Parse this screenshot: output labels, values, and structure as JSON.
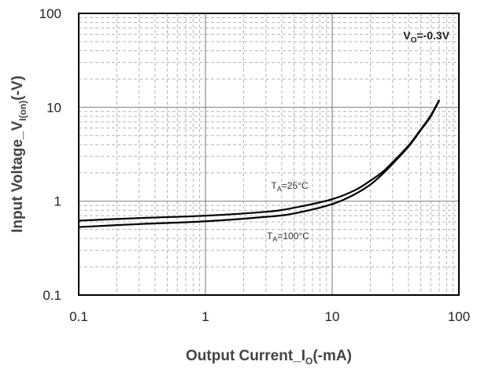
{
  "chart_data": {
    "type": "line",
    "x_scale": "log",
    "y_scale": "log",
    "xlim": [
      0.1,
      100
    ],
    "ylim": [
      0.1,
      100
    ],
    "grid": true,
    "x_ticks": [
      "0.1",
      "1",
      "10",
      "100"
    ],
    "y_ticks": [
      "0.1",
      "1",
      "10",
      "100"
    ],
    "xlabel": {
      "main": "Output Current_I",
      "sub": "O",
      "tail": "(-mA)"
    },
    "ylabel": {
      "main": "Input Voltage_V",
      "sub": "I(on)",
      "tail": "(-V)"
    },
    "condition": {
      "main": "V",
      "sub": "O",
      "tail": "=-0.3V"
    },
    "series": [
      {
        "label": {
          "main": "T",
          "sub": "A",
          "tail": "=25°C"
        },
        "color": "#000000",
        "points": [
          [
            0.1,
            0.62
          ],
          [
            0.3,
            0.66
          ],
          [
            1,
            0.7
          ],
          [
            3,
            0.77
          ],
          [
            5,
            0.85
          ],
          [
            10,
            1.05
          ],
          [
            15,
            1.3
          ],
          [
            20,
            1.65
          ],
          [
            25,
            2.05
          ],
          [
            30,
            2.6
          ],
          [
            40,
            3.9
          ],
          [
            50,
            5.8
          ],
          [
            60,
            8.2
          ],
          [
            70,
            12.0
          ]
        ]
      },
      {
        "label": {
          "main": "T",
          "sub": "A",
          "tail": "=100°C"
        },
        "color": "#000000",
        "points": [
          [
            0.1,
            0.53
          ],
          [
            0.3,
            0.57
          ],
          [
            1,
            0.61
          ],
          [
            3,
            0.68
          ],
          [
            5,
            0.74
          ],
          [
            10,
            0.93
          ],
          [
            15,
            1.18
          ],
          [
            20,
            1.5
          ],
          [
            25,
            1.95
          ],
          [
            30,
            2.5
          ],
          [
            40,
            3.8
          ],
          [
            50,
            5.7
          ],
          [
            60,
            8.0
          ],
          [
            70,
            11.9
          ]
        ]
      }
    ]
  }
}
